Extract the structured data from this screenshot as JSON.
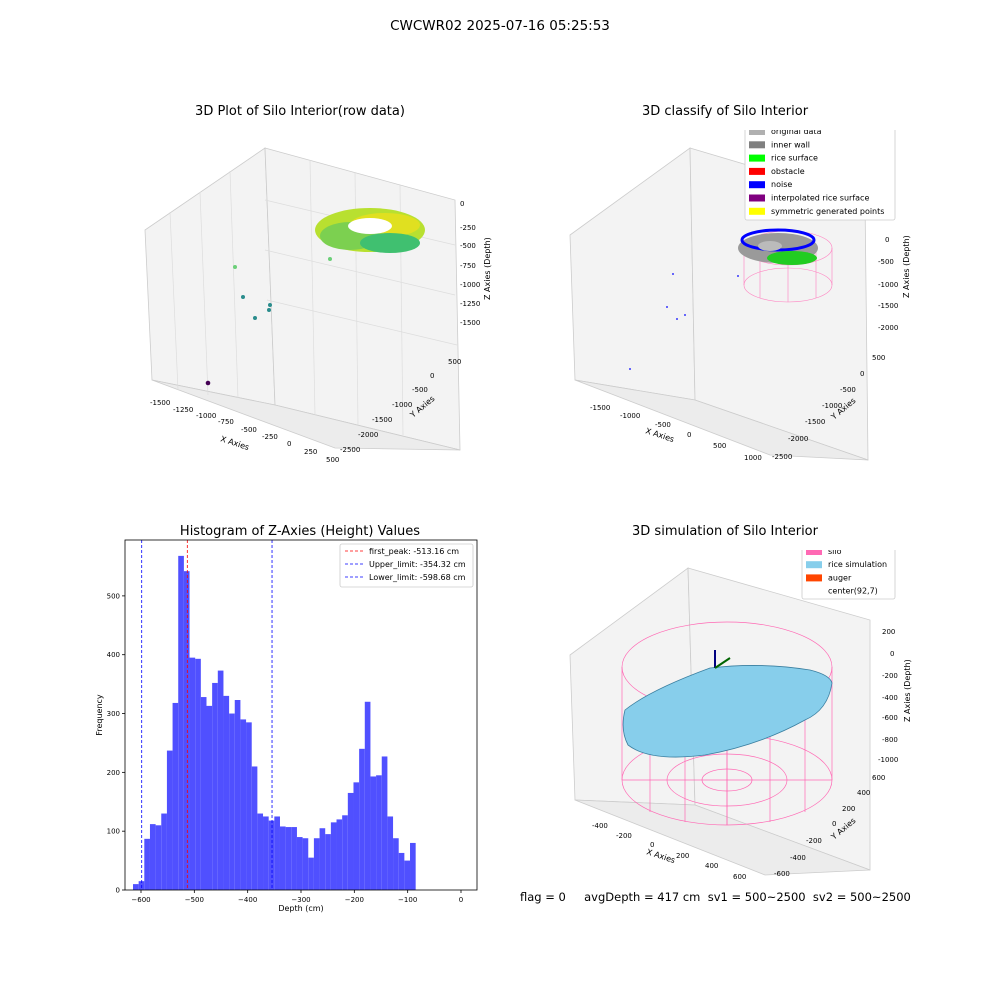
{
  "figure": {
    "suptitle": "CWCWR02 2025-07-16 05:25:53",
    "footer": "flag = 0     avgDepth = 417 cm  sv1 = 500~2500  sv2 = 500~2500"
  },
  "panel_raw": {
    "title": "3D Plot of Silo Interior(row data)",
    "xlabel": "X Axies",
    "ylabel": "Y Axies",
    "zlabel": "Z Axies (Depth)",
    "xticks": [
      "-1500",
      "-1250",
      "-1000",
      "-750",
      "-500",
      "-250",
      "0",
      "250",
      "500"
    ],
    "yticks": [
      "500",
      "0",
      "-500",
      "-1000",
      "-1500",
      "-2000",
      "-2500"
    ],
    "zticks": [
      "0",
      "-250",
      "-500",
      "-750",
      "-1000",
      "-1250",
      "-1500"
    ]
  },
  "panel_classify": {
    "title": "3D classify of Silo Interior",
    "xlabel": "X Axies",
    "ylabel": "Y Axies",
    "zlabel": "Z Axies (Depth)",
    "xticks": [
      "-1500",
      "-1000",
      "-500",
      "0",
      "500",
      "1000"
    ],
    "yticks": [
      "500",
      "0",
      "-500",
      "-1000",
      "-1500",
      "-2000",
      "-2500"
    ],
    "zticks": [
      "500",
      "0",
      "-500",
      "-1000",
      "-1500",
      "-2000"
    ],
    "legend": [
      {
        "label": "original data",
        "color": "#b0b0b0"
      },
      {
        "label": "inner wall",
        "color": "#808080"
      },
      {
        "label": "rice surface",
        "color": "#00ff00"
      },
      {
        "label": "obstacle",
        "color": "#ff0000"
      },
      {
        "label": "noise",
        "color": "#0000ff"
      },
      {
        "label": "interpolated rice surface",
        "color": "#800080"
      },
      {
        "label": "symmetric generated points",
        "color": "#ffff00"
      }
    ]
  },
  "panel_sim": {
    "title": "3D simulation of Silo Interior",
    "xlabel": "X Axies",
    "ylabel": "Y Axies",
    "zlabel": "Z Axies (Depth)",
    "xticks": [
      "-400",
      "-200",
      "0",
      "200",
      "400",
      "600"
    ],
    "yticks": [
      "600",
      "400",
      "200",
      "0",
      "-200",
      "-400",
      "-600"
    ],
    "zticks": [
      "200",
      "0",
      "-200",
      "-400",
      "-600",
      "-800",
      "-1000"
    ],
    "legend": [
      {
        "label": "silo",
        "color": "#ff69b4"
      },
      {
        "label": "rice simulation",
        "color": "#87ceeb"
      },
      {
        "label": "auger",
        "color": "#ff4500"
      },
      {
        "label": "center(92,7)",
        "color": ""
      }
    ]
  },
  "chart_data": {
    "type": "bar",
    "title": "Histogram of Z-Axies (Height) Values",
    "xlabel": "Depth (cm)",
    "ylabel": "Frequency",
    "xlim": [
      -630,
      30
    ],
    "ylim": [
      0,
      595
    ],
    "xticks": [
      -600,
      -500,
      -400,
      -300,
      -200,
      -100,
      0
    ],
    "yticks": [
      0,
      100,
      200,
      300,
      400,
      500
    ],
    "bin_start": -615,
    "bin_width": 10.6,
    "values": [
      10,
      15,
      87,
      112,
      110,
      130,
      237,
      318,
      568,
      542,
      395,
      393,
      328,
      313,
      352,
      373,
      330,
      300,
      323,
      290,
      285,
      210,
      130,
      125,
      118,
      125,
      108,
      107,
      107,
      90,
      88,
      55,
      88,
      105,
      95,
      115,
      120,
      127,
      165,
      183,
      240,
      320,
      193,
      195,
      227,
      125,
      88,
      63,
      50,
      80
    ],
    "bar_color": "#5050ff",
    "vlines": [
      {
        "label": "first_peak: -513.16 cm",
        "x": -513.16,
        "color": "#ff0000"
      },
      {
        "label": "Upper_limit: -354.32 cm",
        "x": -354.32,
        "color": "#0000ff"
      },
      {
        "label": "Lower_limit: -598.68 cm",
        "x": -598.68,
        "color": "#0000ff"
      }
    ],
    "legend_position": "top-right"
  }
}
